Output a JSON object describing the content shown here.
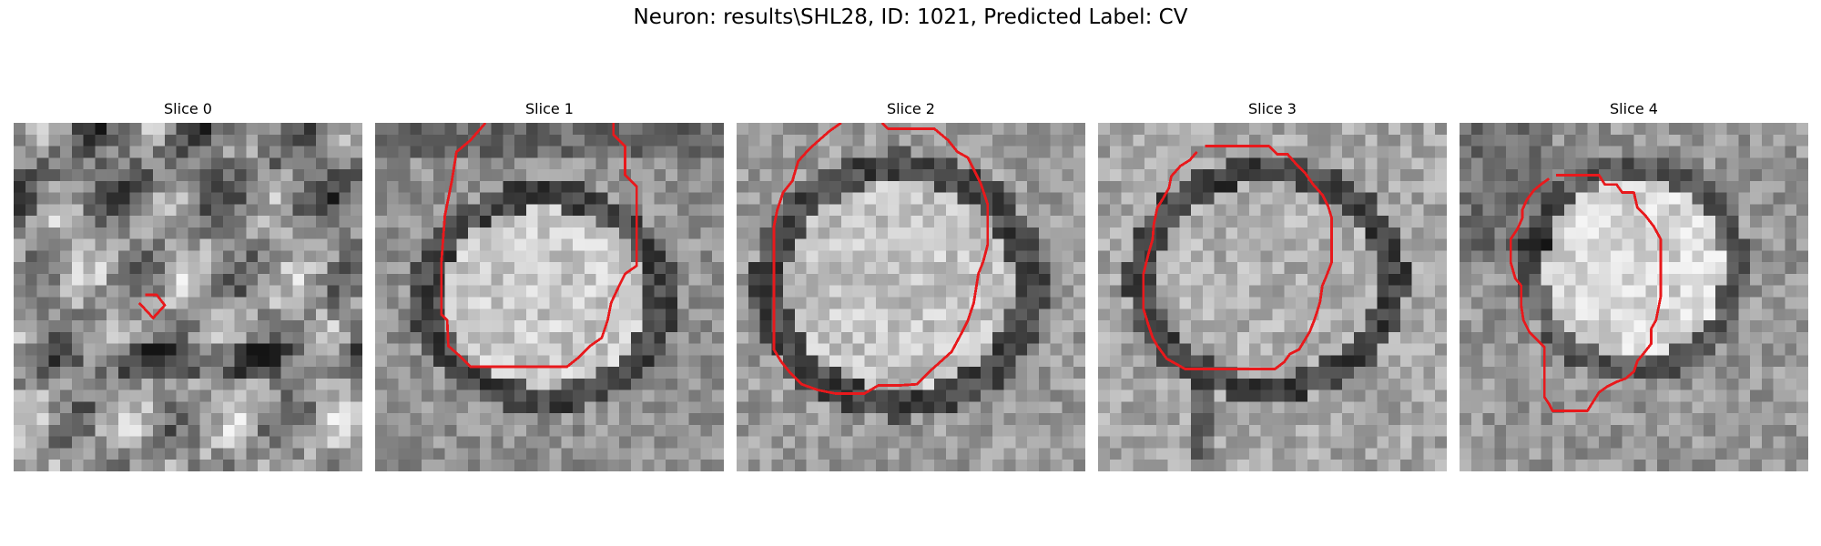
{
  "figure": {
    "title": "Neuron: results\\SHL28, ID: 1021, Predicted Label: CV"
  },
  "panels": [
    {
      "title": "Slice 0",
      "contour_color": "#e8191c",
      "contour": [
        [
          11.3,
          14.8
        ],
        [
          12.3,
          14.8
        ],
        [
          13.0,
          15.7
        ],
        [
          12.0,
          16.8
        ],
        [
          10.8,
          15.5
        ]
      ]
    },
    {
      "title": "Slice 1",
      "contour_color": "#e8191c",
      "contour": [
        [
          9.5,
          0.0
        ],
        [
          8.2,
          1.5
        ],
        [
          7.0,
          2.5
        ],
        [
          6.6,
          5.0
        ],
        [
          6.0,
          8.0
        ],
        [
          5.7,
          12.0
        ],
        [
          5.7,
          16.5
        ],
        [
          6.2,
          17.0
        ],
        [
          6.3,
          19.2
        ],
        [
          7.2,
          20.0
        ],
        [
          8.2,
          21.0
        ],
        [
          12.0,
          21.0
        ],
        [
          16.5,
          21.0
        ],
        [
          17.5,
          20.2
        ],
        [
          18.5,
          19.2
        ],
        [
          19.5,
          18.5
        ],
        [
          20.0,
          17.0
        ],
        [
          20.3,
          15.5
        ],
        [
          21.0,
          14.0
        ],
        [
          21.5,
          13.0
        ],
        [
          22.5,
          12.3
        ],
        [
          22.5,
          9.5
        ],
        [
          22.5,
          5.5
        ],
        [
          21.5,
          4.5
        ],
        [
          21.5,
          2.0
        ],
        [
          20.5,
          1.0
        ],
        [
          20.5,
          0.0
        ]
      ]
    },
    {
      "title": "Slice 2",
      "contour_color": "#e8191c",
      "contour": [
        [
          9.0,
          0.0
        ],
        [
          8.0,
          0.7
        ],
        [
          7.2,
          1.4
        ],
        [
          6.3,
          2.2
        ],
        [
          5.3,
          3.3
        ],
        [
          4.8,
          5.0
        ],
        [
          4.0,
          6.0
        ],
        [
          3.5,
          7.5
        ],
        [
          3.2,
          9.0
        ],
        [
          3.2,
          12.0
        ],
        [
          3.2,
          16.0
        ],
        [
          3.2,
          19.5
        ],
        [
          3.8,
          20.5
        ],
        [
          4.6,
          21.5
        ],
        [
          5.6,
          22.5
        ],
        [
          7.0,
          23.0
        ],
        [
          8.5,
          23.3
        ],
        [
          11.0,
          23.3
        ],
        [
          12.2,
          22.6
        ],
        [
          14.0,
          22.6
        ],
        [
          15.5,
          22.5
        ],
        [
          16.6,
          21.4
        ],
        [
          17.5,
          20.6
        ],
        [
          18.5,
          19.7
        ],
        [
          19.3,
          18.2
        ],
        [
          19.9,
          17.0
        ],
        [
          20.4,
          15.5
        ],
        [
          20.8,
          13.0
        ],
        [
          21.2,
          12.0
        ],
        [
          21.6,
          10.5
        ],
        [
          21.6,
          7.0
        ],
        [
          21.0,
          5.2
        ],
        [
          20.5,
          4.2
        ],
        [
          19.9,
          3.0
        ],
        [
          19.0,
          2.5
        ],
        [
          18.2,
          1.5
        ],
        [
          17.0,
          0.5
        ],
        [
          13.0,
          0.5
        ],
        [
          12.5,
          0.0
        ]
      ]
    },
    {
      "title": "Slice 3",
      "contour_color": "#e8191c",
      "contour": [
        [
          9.2,
          2.0
        ],
        [
          12.0,
          2.0
        ],
        [
          14.7,
          2.0
        ],
        [
          15.4,
          2.7
        ],
        [
          16.3,
          2.7
        ],
        [
          17.0,
          3.5
        ],
        [
          17.8,
          4.3
        ],
        [
          18.5,
          5.3
        ],
        [
          19.3,
          6.2
        ],
        [
          19.8,
          7.2
        ],
        [
          20.1,
          8.2
        ],
        [
          20.1,
          11.0
        ],
        [
          20.1,
          12.0
        ],
        [
          19.6,
          13.3
        ],
        [
          19.3,
          14.0
        ],
        [
          19.1,
          15.4
        ],
        [
          18.8,
          16.4
        ],
        [
          18.6,
          17.0
        ],
        [
          18.2,
          18.0
        ],
        [
          17.3,
          19.5
        ],
        [
          16.5,
          19.9
        ],
        [
          16.0,
          20.6
        ],
        [
          15.2,
          21.2
        ],
        [
          12.0,
          21.2
        ],
        [
          7.5,
          21.2
        ],
        [
          6.8,
          20.8
        ],
        [
          5.9,
          20.3
        ],
        [
          5.1,
          19.2
        ],
        [
          4.7,
          18.5
        ],
        [
          4.3,
          17.3
        ],
        [
          3.9,
          16.0
        ],
        [
          3.9,
          13.0
        ],
        [
          4.3,
          11.4
        ],
        [
          4.7,
          10.0
        ],
        [
          4.8,
          8.7
        ],
        [
          5.1,
          7.3
        ],
        [
          5.6,
          6.5
        ],
        [
          6.1,
          5.6
        ],
        [
          6.3,
          4.6
        ],
        [
          7.1,
          3.7
        ],
        [
          7.9,
          3.2
        ],
        [
          8.5,
          2.5
        ]
      ]
    },
    {
      "title": "Slice 4",
      "contour_color": "#e8191c",
      "contour": [
        [
          8.3,
          4.5
        ],
        [
          9.0,
          4.5
        ],
        [
          10.0,
          4.5
        ],
        [
          12.0,
          4.5
        ],
        [
          12.5,
          5.3
        ],
        [
          13.5,
          5.3
        ],
        [
          14.0,
          6.0
        ],
        [
          15.0,
          6.0
        ],
        [
          15.3,
          7.3
        ],
        [
          16.0,
          8.0
        ],
        [
          16.7,
          8.9
        ],
        [
          17.3,
          10.0
        ],
        [
          17.3,
          12.0
        ],
        [
          17.3,
          15.0
        ],
        [
          16.9,
          17.0
        ],
        [
          16.5,
          17.7
        ],
        [
          16.5,
          19.0
        ],
        [
          15.8,
          19.9
        ],
        [
          15.3,
          20.5
        ],
        [
          15.0,
          21.4
        ],
        [
          14.3,
          22.0
        ],
        [
          13.5,
          22.3
        ],
        [
          12.7,
          22.7
        ],
        [
          12.0,
          23.2
        ],
        [
          11.5,
          24.0
        ],
        [
          11.0,
          24.8
        ],
        [
          8.0,
          24.8
        ],
        [
          7.7,
          24.2
        ],
        [
          7.3,
          23.6
        ],
        [
          7.3,
          21.2
        ],
        [
          7.3,
          19.3
        ],
        [
          6.7,
          18.7
        ],
        [
          6.0,
          18.0
        ],
        [
          5.5,
          17.0
        ],
        [
          5.3,
          15.7
        ],
        [
          5.3,
          14.0
        ],
        [
          4.8,
          13.4
        ],
        [
          4.4,
          12.0
        ],
        [
          4.4,
          10.0
        ],
        [
          5.0,
          9.1
        ],
        [
          5.4,
          8.2
        ],
        [
          5.4,
          7.5
        ],
        [
          5.8,
          6.6
        ],
        [
          6.4,
          5.8
        ],
        [
          7.0,
          5.3
        ],
        [
          7.7,
          4.8
        ]
      ]
    }
  ]
}
